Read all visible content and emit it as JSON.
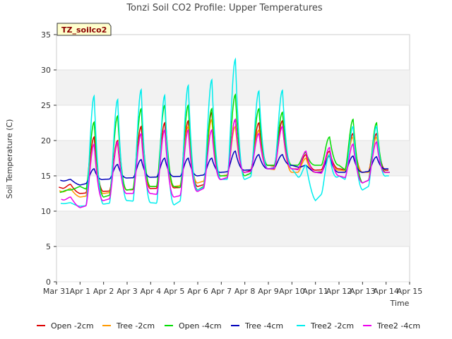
{
  "chart_data": {
    "type": "line",
    "title": "Tonzi Soil CO2 Profile: Upper Temperatures",
    "xlabel": "Time",
    "ylabel": "Soil Temperature (C)",
    "tag": "TZ_soilco2",
    "ylim": [
      0,
      35
    ],
    "yticks": [
      0,
      5,
      10,
      15,
      20,
      25,
      30,
      35
    ],
    "xlim": [
      0,
      15
    ],
    "xticks": [
      0,
      1,
      2,
      3,
      4,
      5,
      6,
      7,
      8,
      9,
      10,
      11,
      12,
      13,
      14,
      15
    ],
    "xtick_labels": [
      "Mar 31",
      "Apr 1",
      "Apr 2",
      "Apr 3",
      "Apr 4",
      "Apr 5",
      "Apr 6",
      "Apr 7",
      "Apr 8",
      "Apr 9",
      "Apr 10",
      "Apr 11",
      "Apr 12",
      "Apr 13",
      "Apr 14",
      "Apr 15"
    ],
    "grid": "horizontal bands",
    "legend_position": "bottom",
    "days": [
      "Mar 31",
      "Apr 1",
      "Apr 2",
      "Apr 3",
      "Apr 4",
      "Apr 5",
      "Apr 6",
      "Apr 7",
      "Apr 8",
      "Apr 9",
      "Apr 10",
      "Apr 11",
      "Apr 12",
      "Apr 13",
      "Apr 14"
    ],
    "series_note": "per series, per day: [overnight minimum, afternoon maximum] in deg C",
    "series": [
      {
        "name": "Open -2cm",
        "color": "#dd0000",
        "daily_min": [
          13.5,
          12.5,
          12.8,
          13.0,
          13.2,
          13.3,
          13.5,
          14.5,
          15.5,
          16.5,
          16.0,
          15.8,
          16.0,
          15.5,
          15.8
        ],
        "daily_max": [
          13.8,
          20.5,
          20.0,
          22.0,
          22.5,
          22.8,
          24.0,
          23.0,
          22.5,
          22.8,
          18.0,
          18.5,
          21.0,
          21.0,
          21.5
        ]
      },
      {
        "name": "Tree -2cm",
        "color": "#ff9900",
        "daily_min": [
          13.0,
          12.0,
          12.5,
          13.0,
          13.5,
          13.5,
          14.0,
          15.0,
          15.5,
          16.0,
          15.5,
          15.5,
          15.8,
          15.5,
          15.5
        ],
        "daily_max": [
          13.2,
          19.5,
          19.5,
          21.0,
          21.5,
          22.0,
          23.0,
          22.0,
          21.5,
          22.0,
          17.5,
          18.0,
          20.5,
          20.5,
          21.0
        ]
      },
      {
        "name": "Open -4cm",
        "color": "#00dd00",
        "daily_min": [
          12.5,
          13.5,
          12.0,
          13.0,
          13.5,
          13.5,
          13.0,
          15.0,
          15.0,
          16.5,
          16.5,
          16.5,
          16.5,
          14.0,
          15.5
        ],
        "daily_max": [
          13.0,
          22.6,
          23.5,
          24.5,
          25.0,
          25.0,
          24.5,
          26.5,
          24.5,
          24.0,
          18.3,
          20.5,
          23.0,
          22.5,
          23.5
        ]
      },
      {
        "name": "Tree -4cm",
        "color": "#0000bb",
        "daily_min": [
          14.5,
          13.7,
          14.5,
          14.7,
          14.8,
          14.9,
          15.0,
          15.5,
          15.8,
          16.0,
          16.5,
          15.5,
          15.5,
          15.5,
          16.0
        ],
        "daily_max": [
          14.5,
          16.0,
          16.6,
          17.3,
          17.5,
          17.5,
          17.5,
          18.5,
          18.0,
          18.0,
          16.5,
          17.8,
          17.8,
          17.7,
          17.5
        ]
      },
      {
        "name": "Tree2 -2cm",
        "color": "#00eeee",
        "daily_min": [
          11.2,
          10.7,
          11.0,
          11.5,
          11.2,
          10.9,
          13.0,
          14.5,
          14.5,
          16.0,
          16.0,
          11.5,
          15.0,
          13.0,
          15.0
        ],
        "daily_max": [
          11.2,
          26.3,
          25.8,
          27.2,
          26.4,
          27.8,
          28.6,
          31.5,
          27.0,
          27.1,
          16.5,
          18.0,
          22.0,
          22.0,
          24.8
        ]
      },
      {
        "name": "Tree2 -4cm",
        "color": "#ee00ee",
        "daily_min": [
          12.0,
          10.5,
          11.5,
          12.5,
          12.5,
          12.0,
          12.8,
          14.5,
          15.5,
          16.0,
          16.0,
          15.5,
          15.0,
          14.0,
          15.5
        ],
        "daily_max": [
          12.0,
          19.5,
          19.8,
          21.0,
          21.5,
          21.5,
          21.5,
          23.0,
          21.0,
          22.0,
          18.5,
          19.0,
          19.5,
          19.8,
          20.5
        ]
      }
    ]
  }
}
